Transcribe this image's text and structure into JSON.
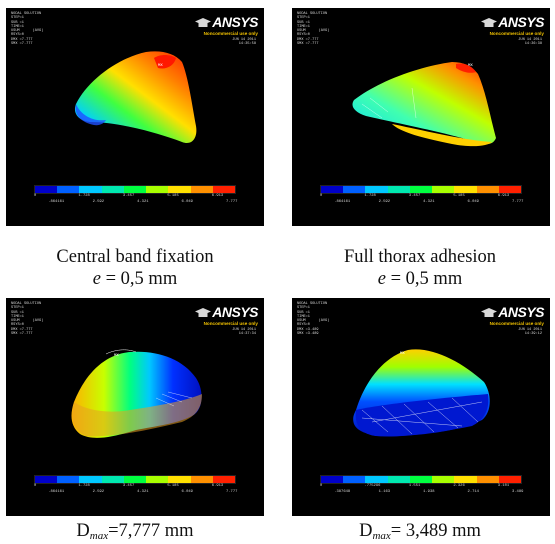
{
  "panels": [
    {
      "info": [
        "NODAL SOLUTION",
        "STEP=1",
        "SUB =1",
        "TIME=1",
        "USUM      (AVG)",
        "RSYS=0",
        "DMX =7.777",
        "SMX =7.777"
      ],
      "date": "JUN 14 2011",
      "time": "14:35:58",
      "scale_top": [
        "0",
        "1.728",
        "3.457",
        "5.185",
        "6.913"
      ],
      "scale_bottom": [
        ".864161",
        "2.592",
        "4.321",
        "6.049",
        "7.777"
      ]
    },
    {
      "info": [
        "NODAL SOLUTION",
        "STEP=1",
        "SUB =1",
        "TIME=1",
        "USUM      (AVG)",
        "RSYS=0",
        "DMX =7.777",
        "SMX =7.777"
      ],
      "date": "JUN 14 2011",
      "time": "14:36:38",
      "scale_top": [
        "0",
        "1.728",
        "3.457",
        "5.185",
        "6.913"
      ],
      "scale_bottom": [
        ".864161",
        "2.592",
        "4.321",
        "6.049",
        "7.777"
      ]
    },
    {
      "info": [
        "NODAL SOLUTION",
        "STEP=1",
        "SUB =1",
        "TIME=1",
        "USUM      (AVG)",
        "RSYS=0",
        "DMX =7.777",
        "SMX =7.777"
      ],
      "date": "JUN 14 2011",
      "time": "14:37:34",
      "scale_top": [
        "0",
        "1.728",
        "3.457",
        "5.185",
        "6.913"
      ],
      "scale_bottom": [
        ".864161",
        "2.592",
        "4.321",
        "6.049",
        "7.777"
      ]
    },
    {
      "info": [
        "NODAL SOLUTION",
        "STEP=1",
        "SUB =1",
        "TIME=1",
        "USUM      (AVG)",
        "RSYS=0",
        "DMX =3.489",
        "SMX =3.489"
      ],
      "date": "JUN 14 2011",
      "time": "14:39:12",
      "scale_top": [
        "0",
        ".775296",
        "1.551",
        "2.326",
        "3.101"
      ],
      "scale_bottom": [
        ".387648",
        "1.163",
        "1.938",
        "2.714",
        "3.489"
      ]
    }
  ],
  "logo": {
    "name": "ANSYS",
    "subtitle": "Noncommercial use only"
  },
  "captions": {
    "c1_line1": "Central band fixation",
    "c2_line1": "Full thorax adhesion",
    "e_label": "e",
    "e_value": " = 0,5 mm",
    "d_label": "D",
    "d_sub": "max",
    "d3_value": "=7,777 mm",
    "d4_value": "= 3,489 mm"
  },
  "colormap": [
    "#0000c8",
    "#0060ff",
    "#00c8ff",
    "#00e8b0",
    "#00ff40",
    "#a8ff00",
    "#ffe000",
    "#ff9000",
    "#ff2000"
  ]
}
